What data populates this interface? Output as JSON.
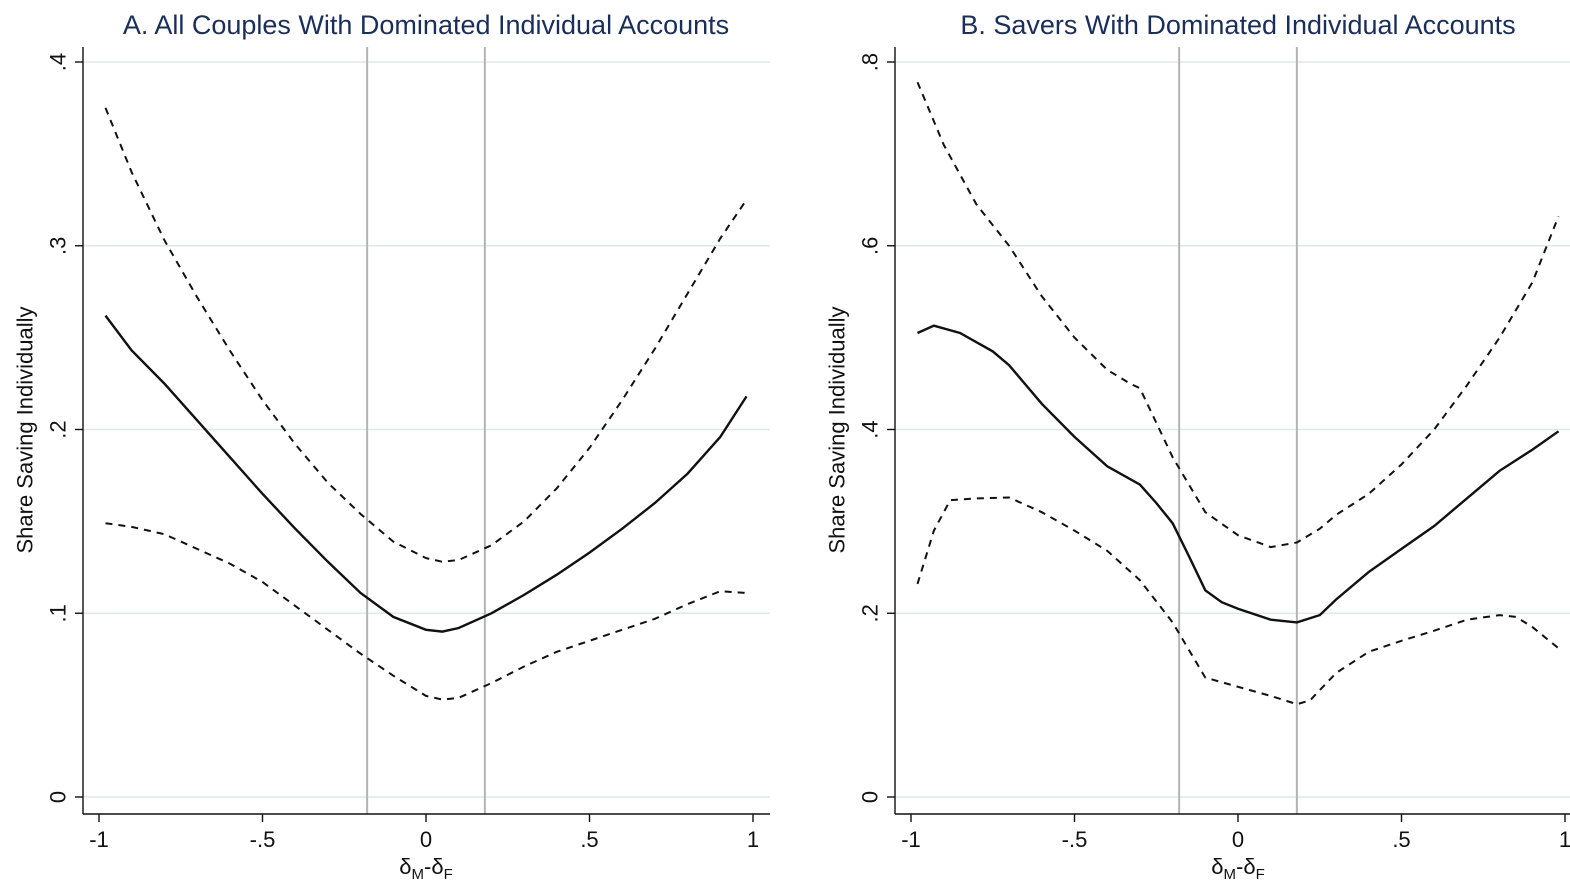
{
  "chart_data": [
    {
      "type": "line",
      "title": "A. All Couples With Dominated Individual Accounts",
      "xlabel": "δM-δF",
      "ylabel": "Share Saving Individually",
      "xlim": [
        -1,
        1
      ],
      "ylim": [
        0,
        0.4
      ],
      "x_ticks": [
        -1,
        -0.5,
        0,
        0.5,
        1
      ],
      "x_tick_labels": [
        "-1",
        "-.5",
        "0",
        ".5",
        "1"
      ],
      "y_ticks": [
        0,
        0.1,
        0.2,
        0.3,
        0.4
      ],
      "y_tick_labels": [
        "0",
        ".1",
        ".2",
        ".3",
        ".4"
      ],
      "reference_x": [
        -0.18,
        0.18
      ],
      "grid": true,
      "series": [
        {
          "role": "estimate",
          "style": "solid",
          "x": [
            -0.98,
            -0.9,
            -0.8,
            -0.7,
            -0.6,
            -0.5,
            -0.4,
            -0.3,
            -0.2,
            -0.1,
            0,
            0.05,
            0.1,
            0.2,
            0.3,
            0.4,
            0.5,
            0.6,
            0.7,
            0.8,
            0.9,
            0.98
          ],
          "y": [
            0.262,
            0.243,
            0.225,
            0.205,
            0.185,
            0.165,
            0.146,
            0.128,
            0.111,
            0.098,
            0.091,
            0.09,
            0.092,
            0.1,
            0.11,
            0.121,
            0.133,
            0.146,
            0.16,
            0.176,
            0.196,
            0.218
          ]
        },
        {
          "role": "upper_ci",
          "style": "dashed",
          "x": [
            -0.98,
            -0.9,
            -0.8,
            -0.7,
            -0.6,
            -0.5,
            -0.4,
            -0.3,
            -0.2,
            -0.1,
            0,
            0.05,
            0.1,
            0.2,
            0.3,
            0.4,
            0.5,
            0.6,
            0.7,
            0.8,
            0.9,
            0.98
          ],
          "y": [
            0.375,
            0.34,
            0.303,
            0.272,
            0.243,
            0.216,
            0.192,
            0.171,
            0.154,
            0.139,
            0.13,
            0.128,
            0.129,
            0.137,
            0.15,
            0.168,
            0.19,
            0.216,
            0.244,
            0.274,
            0.304,
            0.325
          ]
        },
        {
          "role": "lower_ci",
          "style": "dashed",
          "x": [
            -0.98,
            -0.9,
            -0.8,
            -0.7,
            -0.6,
            -0.5,
            -0.4,
            -0.3,
            -0.2,
            -0.1,
            0,
            0.05,
            0.1,
            0.2,
            0.3,
            0.4,
            0.5,
            0.6,
            0.7,
            0.8,
            0.9,
            0.98
          ],
          "y": [
            0.149,
            0.147,
            0.143,
            0.135,
            0.127,
            0.117,
            0.104,
            0.091,
            0.078,
            0.066,
            0.055,
            0.053,
            0.054,
            0.062,
            0.071,
            0.079,
            0.085,
            0.091,
            0.097,
            0.105,
            0.112,
            0.111
          ]
        }
      ]
    },
    {
      "type": "line",
      "title": "B. Savers With Dominated Individual Accounts",
      "xlabel": "δM-δF",
      "ylabel": "Share Saving Individually",
      "xlim": [
        -1,
        1
      ],
      "ylim": [
        0,
        0.8
      ],
      "x_ticks": [
        -1,
        -0.5,
        0,
        0.5,
        1
      ],
      "x_tick_labels": [
        "-1",
        "-.5",
        "0",
        ".5",
        "1"
      ],
      "y_ticks": [
        0,
        0.2,
        0.4,
        0.6,
        0.8
      ],
      "y_tick_labels": [
        "0",
        ".2",
        ".4",
        ".6",
        ".8"
      ],
      "reference_x": [
        -0.18,
        0.18
      ],
      "grid": true,
      "series": [
        {
          "role": "estimate",
          "style": "solid",
          "x": [
            -0.98,
            -0.93,
            -0.85,
            -0.75,
            -0.7,
            -0.6,
            -0.5,
            -0.4,
            -0.3,
            -0.25,
            -0.2,
            -0.15,
            -0.1,
            -0.05,
            0,
            0.1,
            0.18,
            0.25,
            0.3,
            0.4,
            0.5,
            0.6,
            0.7,
            0.8,
            0.9,
            0.98
          ],
          "y": [
            0.505,
            0.513,
            0.505,
            0.485,
            0.47,
            0.428,
            0.392,
            0.36,
            0.34,
            0.32,
            0.298,
            0.262,
            0.225,
            0.212,
            0.205,
            0.193,
            0.19,
            0.198,
            0.215,
            0.245,
            0.27,
            0.295,
            0.325,
            0.355,
            0.378,
            0.398
          ]
        },
        {
          "role": "upper_ci",
          "style": "dashed",
          "x": [
            -0.98,
            -0.9,
            -0.8,
            -0.7,
            -0.6,
            -0.5,
            -0.4,
            -0.33,
            -0.3,
            -0.2,
            -0.1,
            0,
            0.1,
            0.18,
            0.25,
            0.3,
            0.4,
            0.5,
            0.6,
            0.7,
            0.8,
            0.9,
            0.98
          ],
          "y": [
            0.778,
            0.71,
            0.645,
            0.6,
            0.545,
            0.5,
            0.465,
            0.45,
            0.445,
            0.37,
            0.31,
            0.285,
            0.272,
            0.277,
            0.292,
            0.307,
            0.33,
            0.362,
            0.4,
            0.448,
            0.5,
            0.56,
            0.632
          ]
        },
        {
          "role": "lower_ci",
          "style": "dashed",
          "x": [
            -0.98,
            -0.93,
            -0.88,
            -0.8,
            -0.7,
            -0.6,
            -0.5,
            -0.4,
            -0.3,
            -0.2,
            -0.1,
            0,
            0.1,
            0.18,
            0.22,
            0.3,
            0.4,
            0.5,
            0.6,
            0.7,
            0.8,
            0.85,
            0.9,
            0.98
          ],
          "y": [
            0.232,
            0.29,
            0.323,
            0.325,
            0.326,
            0.31,
            0.29,
            0.268,
            0.236,
            0.19,
            0.13,
            0.12,
            0.11,
            0.101,
            0.105,
            0.135,
            0.158,
            0.17,
            0.181,
            0.193,
            0.198,
            0.196,
            0.185,
            0.162
          ]
        }
      ]
    }
  ]
}
